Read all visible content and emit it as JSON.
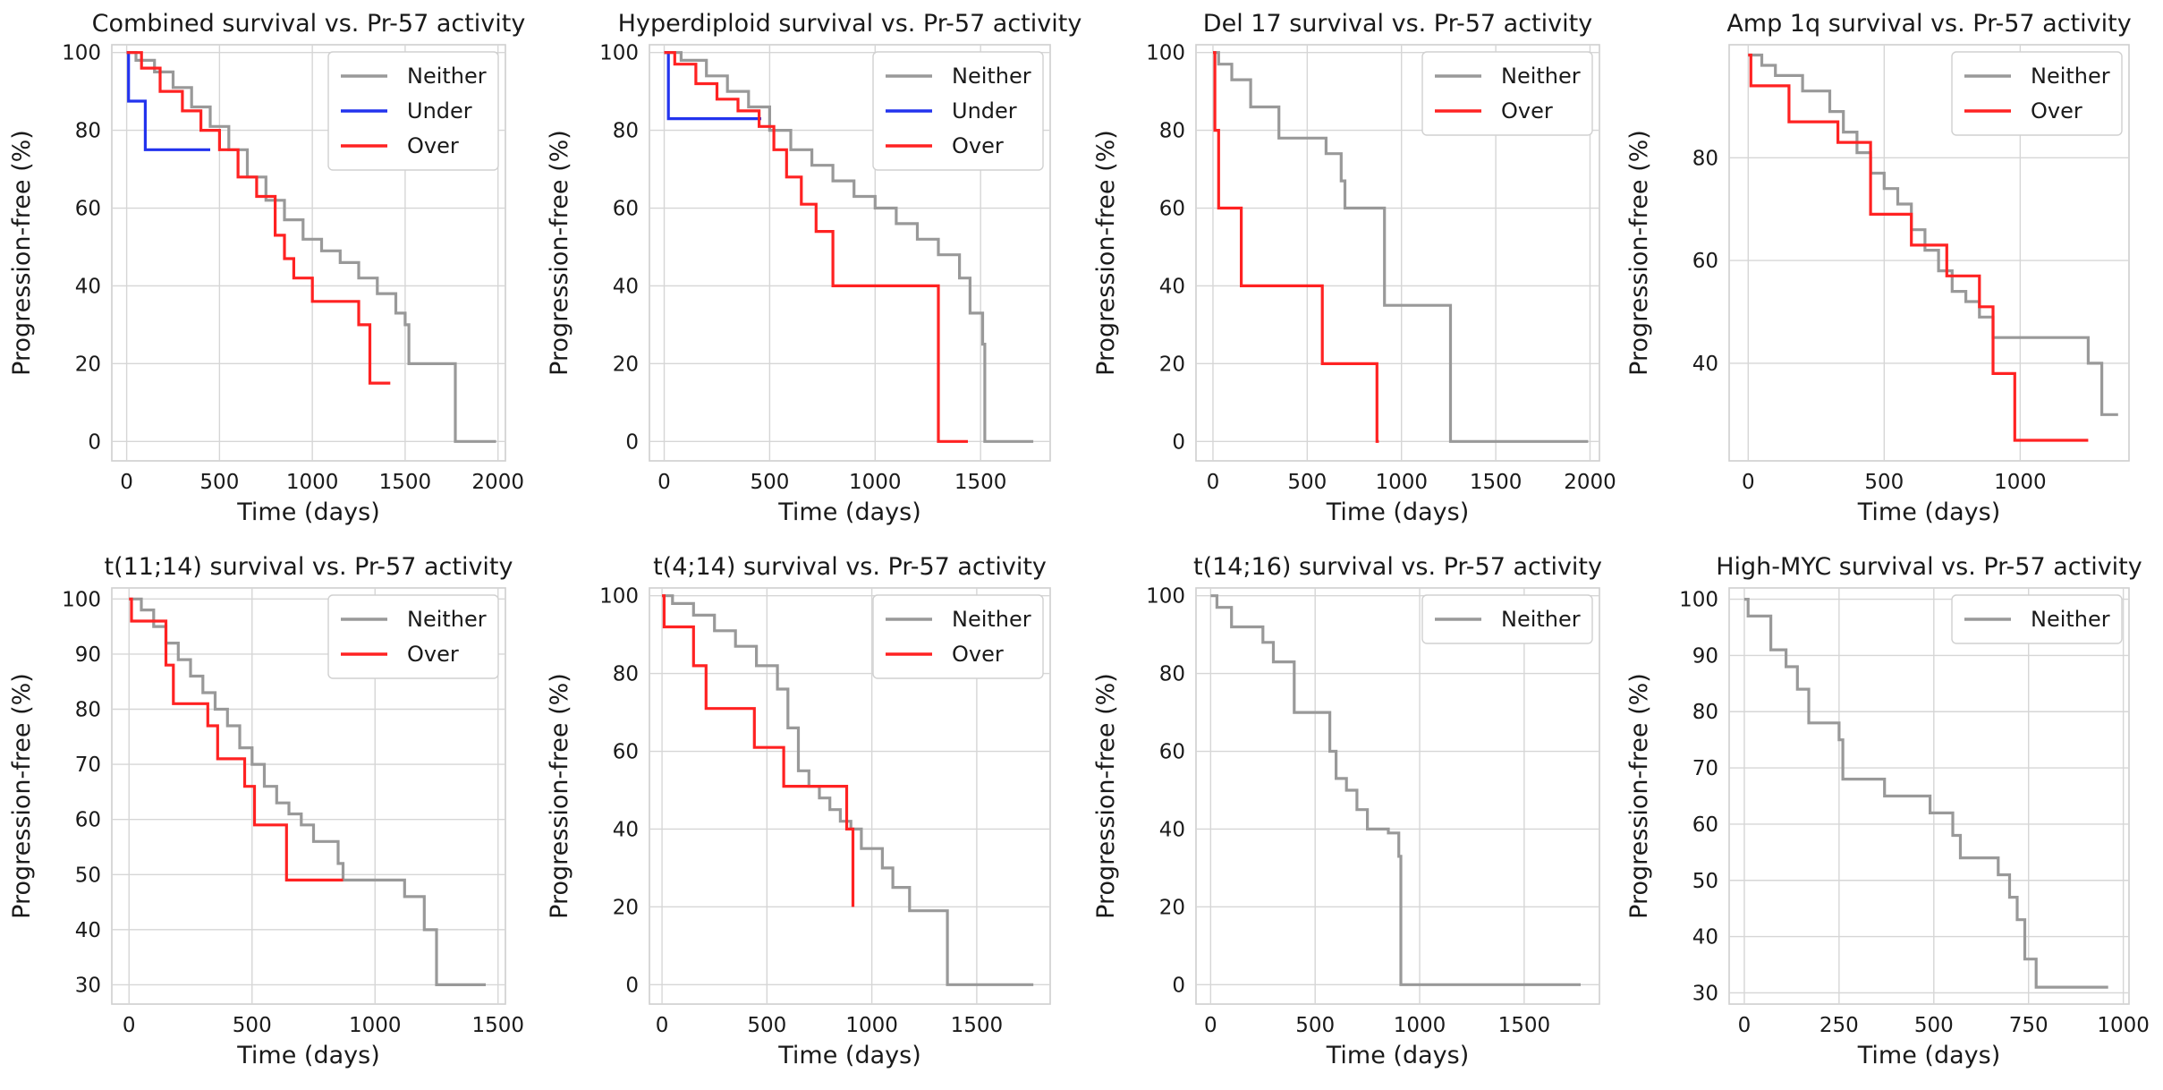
{
  "chart_data": [
    {
      "type": "line",
      "title": "Combined survival vs. Pr-57 activity",
      "xlabel": "Time (days)",
      "ylabel": "Progression-free (%)",
      "xlim": [
        -80,
        2040
      ],
      "ylim": [
        -5,
        102
      ],
      "xticks": [
        0,
        500,
        1000,
        1500,
        2000
      ],
      "yticks": [
        0,
        20,
        40,
        60,
        80,
        100
      ],
      "series": [
        {
          "name": "Neither",
          "color": "#999999",
          "x": [
            0,
            50,
            150,
            250,
            350,
            450,
            550,
            650,
            750,
            850,
            950,
            1050,
            1150,
            1250,
            1350,
            1450,
            1500,
            1520,
            1770,
            1990
          ],
          "y": [
            100,
            98,
            95,
            91,
            86,
            81,
            75,
            68,
            62,
            57,
            52,
            49,
            46,
            42,
            38,
            33,
            30,
            20,
            0,
            0
          ]
        },
        {
          "name": "Under",
          "color": "#2233ee",
          "x": [
            0,
            10,
            100,
            450
          ],
          "y": [
            100,
            87.5,
            75,
            75
          ]
        },
        {
          "name": "Over",
          "color": "#ff2222",
          "x": [
            0,
            80,
            180,
            300,
            400,
            500,
            600,
            700,
            800,
            850,
            900,
            1000,
            1250,
            1310,
            1420
          ],
          "y": [
            100,
            96,
            90,
            85,
            80,
            75,
            68,
            63,
            53,
            47,
            42,
            36,
            30,
            15,
            15
          ]
        }
      ]
    },
    {
      "type": "line",
      "title": "Hyperdiploid survival vs. Pr-57 activity",
      "xlabel": "Time (days)",
      "ylabel": "Progression-free (%)",
      "xlim": [
        -70,
        1830
      ],
      "ylim": [
        -5,
        102
      ],
      "xticks": [
        0,
        500,
        1000,
        1500
      ],
      "yticks": [
        0,
        20,
        40,
        60,
        80,
        100
      ],
      "series": [
        {
          "name": "Neither",
          "color": "#999999",
          "x": [
            0,
            80,
            200,
            300,
            400,
            500,
            600,
            700,
            800,
            900,
            1000,
            1100,
            1200,
            1300,
            1400,
            1450,
            1510,
            1520,
            1750
          ],
          "y": [
            100,
            98,
            94,
            90,
            86,
            80,
            75,
            71,
            67,
            63,
            60,
            56,
            52,
            48,
            42,
            33,
            25,
            0,
            0
          ]
        },
        {
          "name": "Under",
          "color": "#2233ee",
          "x": [
            0,
            20,
            460
          ],
          "y": [
            100,
            83,
            83
          ]
        },
        {
          "name": "Over",
          "color": "#ff2222",
          "x": [
            0,
            50,
            150,
            250,
            350,
            450,
            520,
            580,
            650,
            720,
            800,
            1300,
            1440
          ],
          "y": [
            100,
            97,
            92,
            88,
            85,
            81,
            75,
            68,
            61,
            54,
            40,
            0,
            0
          ]
        }
      ]
    },
    {
      "type": "line",
      "title": "Del 17 survival vs. Pr-57 activity",
      "xlabel": "Time (days)",
      "ylabel": "Progression-free (%)",
      "xlim": [
        -90,
        2050
      ],
      "ylim": [
        -5,
        102
      ],
      "xticks": [
        0,
        500,
        1000,
        1500,
        2000
      ],
      "yticks": [
        0,
        20,
        40,
        60,
        80,
        100
      ],
      "series": [
        {
          "name": "Neither",
          "color": "#999999",
          "x": [
            0,
            30,
            100,
            200,
            350,
            600,
            680,
            700,
            900,
            910,
            1260,
            1990
          ],
          "y": [
            100,
            97,
            93,
            86,
            78,
            74,
            67,
            60,
            60,
            35,
            0,
            0
          ]
        },
        {
          "name": "Over",
          "color": "#ff2222",
          "x": [
            0,
            10,
            30,
            150,
            580,
            870,
            880
          ],
          "y": [
            100,
            80,
            60,
            40,
            20,
            0,
            0
          ]
        }
      ]
    },
    {
      "type": "line",
      "title": "Amp 1q survival vs. Pr-57 activity",
      "xlabel": "Time (days)",
      "ylabel": "Progression-free (%)",
      "xlim": [
        -70,
        1400
      ],
      "ylim": [
        21,
        102
      ],
      "xticks": [
        0,
        500,
        1000
      ],
      "yticks": [
        40,
        60,
        80
      ],
      "series": [
        {
          "name": "Neither",
          "color": "#999999",
          "x": [
            0,
            50,
            100,
            200,
            300,
            350,
            400,
            450,
            500,
            550,
            600,
            650,
            700,
            750,
            800,
            850,
            900,
            1200,
            1250,
            1300,
            1360
          ],
          "y": [
            100,
            98,
            96,
            93,
            89,
            85,
            81,
            77,
            74,
            71,
            66,
            62,
            58,
            54,
            52,
            49,
            45,
            45,
            40,
            30,
            30
          ]
        },
        {
          "name": "Over",
          "color": "#ff2222",
          "x": [
            0,
            10,
            150,
            330,
            450,
            600,
            730,
            850,
            900,
            980,
            1250
          ],
          "y": [
            100,
            94,
            87,
            83,
            69,
            63,
            57,
            51,
            38,
            25,
            25
          ]
        }
      ]
    },
    {
      "type": "line",
      "title": "t(11;14) survival vs. Pr-57 activity",
      "xlabel": "Time (days)",
      "ylabel": "Progression-free (%)",
      "xlim": [
        -70,
        1530
      ],
      "ylim": [
        26.5,
        102
      ],
      "xticks": [
        0,
        500,
        1000,
        1500
      ],
      "yticks": [
        30,
        40,
        50,
        60,
        70,
        80,
        90,
        100
      ],
      "series": [
        {
          "name": "Neither",
          "color": "#999999",
          "x": [
            0,
            50,
            100,
            150,
            200,
            250,
            300,
            350,
            400,
            450,
            500,
            550,
            600,
            650,
            700,
            750,
            800,
            850,
            870,
            1070,
            1120,
            1200,
            1250,
            1450
          ],
          "y": [
            100,
            98,
            95,
            92,
            89,
            86,
            83,
            80,
            77,
            73,
            70,
            66,
            63,
            61,
            59,
            56,
            56,
            52,
            49,
            49,
            46,
            40,
            30,
            30
          ]
        },
        {
          "name": "Over",
          "color": "#ff2222",
          "x": [
            0,
            10,
            150,
            180,
            320,
            360,
            470,
            510,
            640,
            870
          ],
          "y": [
            100,
            96,
            88,
            81,
            77,
            71,
            66,
            59,
            49,
            49
          ]
        }
      ]
    },
    {
      "type": "line",
      "title": "t(4;14) survival vs. Pr-57 activity",
      "xlabel": "Time (days)",
      "ylabel": "Progression-free (%)",
      "xlim": [
        -60,
        1850
      ],
      "ylim": [
        -5,
        102
      ],
      "xticks": [
        0,
        500,
        1000,
        1500
      ],
      "yticks": [
        0,
        20,
        40,
        60,
        80,
        100
      ],
      "series": [
        {
          "name": "Neither",
          "color": "#999999",
          "x": [
            0,
            50,
            150,
            250,
            350,
            450,
            550,
            600,
            650,
            700,
            750,
            800,
            850,
            900,
            950,
            1050,
            1100,
            1180,
            1360,
            1770
          ],
          "y": [
            100,
            98,
            95,
            91,
            87,
            82,
            76,
            66,
            55,
            51,
            48,
            45,
            42,
            40,
            35,
            30,
            25,
            19,
            0,
            0
          ]
        },
        {
          "name": "Over",
          "color": "#ff2222",
          "x": [
            0,
            10,
            150,
            210,
            440,
            580,
            880,
            910
          ],
          "y": [
            100,
            92,
            82,
            71,
            61,
            51,
            40,
            20
          ]
        }
      ]
    },
    {
      "type": "line",
      "title": "t(14;16) survival vs. Pr-57 activity",
      "xlabel": "Time (days)",
      "ylabel": "Progression-free (%)",
      "xlim": [
        -70,
        1860
      ],
      "ylim": [
        -5,
        102
      ],
      "xticks": [
        0,
        500,
        1000,
        1500
      ],
      "yticks": [
        0,
        20,
        40,
        60,
        80,
        100
      ],
      "series": [
        {
          "name": "Neither",
          "color": "#999999",
          "x": [
            0,
            30,
            100,
            250,
            300,
            400,
            550,
            570,
            600,
            650,
            700,
            750,
            850,
            900,
            910,
            1770
          ],
          "y": [
            100,
            97,
            92,
            88,
            83,
            70,
            70,
            60,
            53,
            50,
            45,
            40,
            39,
            33,
            0,
            0
          ]
        }
      ]
    },
    {
      "type": "line",
      "title": "High-MYC survival vs. Pr-57 activity",
      "xlabel": "Time (days)",
      "ylabel": "Progression-free (%)",
      "xlim": [
        -40,
        1015
      ],
      "ylim": [
        28,
        102
      ],
      "xticks": [
        0,
        250,
        500,
        750,
        1000
      ],
      "yticks": [
        30,
        40,
        50,
        60,
        70,
        80,
        90,
        100
      ],
      "series": [
        {
          "name": "Neither",
          "color": "#999999",
          "x": [
            0,
            10,
            70,
            110,
            140,
            170,
            250,
            260,
            370,
            490,
            550,
            570,
            670,
            700,
            720,
            740,
            770,
            960
          ],
          "y": [
            100,
            97,
            91,
            88,
            84,
            78,
            75,
            68,
            65,
            62,
            58,
            54,
            51,
            47,
            43,
            36,
            31,
            31
          ]
        }
      ]
    }
  ]
}
